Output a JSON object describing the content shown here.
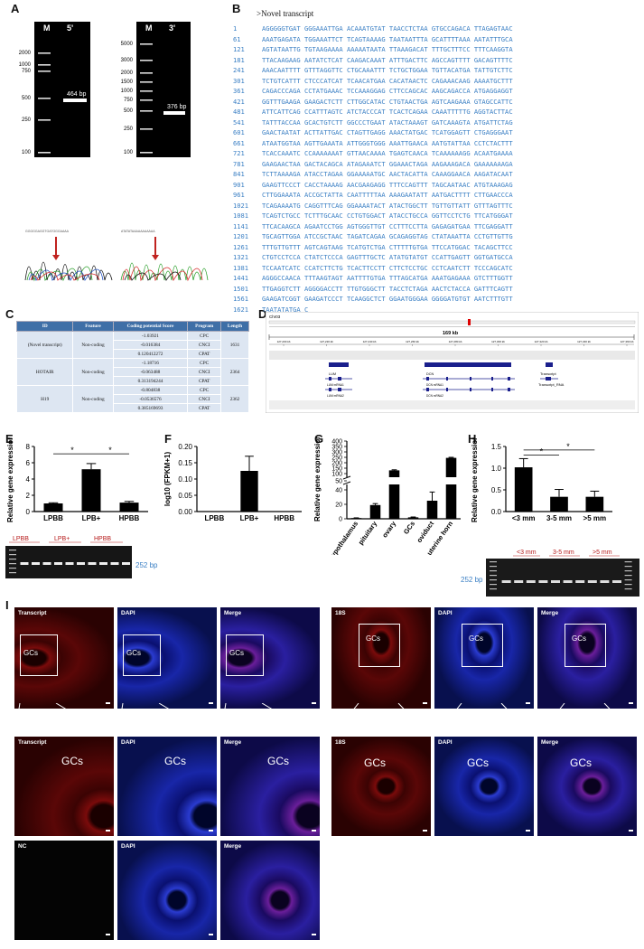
{
  "panels": {
    "A": "A",
    "B": "B",
    "C": "C",
    "D": "D",
    "E": "E",
    "F": "F",
    "G": "G",
    "H": "H",
    "I": "I"
  },
  "gel_a": {
    "left": {
      "marker": "M",
      "lane": "5'",
      "sizes": [
        "2000",
        "1000",
        "750",
        "500",
        "250",
        "100"
      ],
      "band": "464 bp"
    },
    "right": {
      "marker": "M",
      "lane": "3'",
      "sizes": [
        "5000",
        "3000",
        "2000",
        "1500",
        "1000",
        "750",
        "500",
        "250",
        "100"
      ],
      "band": "376 bp"
    }
  },
  "sequence_title": ">Novel transcript",
  "sequence": [
    {
      "n": "1",
      "s": "AGGGGGTGAT GGGAAATTGA ACAAATGTAT TAACCTCTAA GTGCCAGACA TTAGAGTAAC"
    },
    {
      "n": "61",
      "s": "AAATGAGATA TGGAAATTCT TCAGTAAAAG TAATAATTTA GCATTTTAAA AATATTTGCA"
    },
    {
      "n": "121",
      "s": "AGTATAATTG TGTAAGAAAA AAAAATAATA TTAAAGACAT TTTGCTTTCC TTTCAAGGTA"
    },
    {
      "n": "181",
      "s": "TTACAAGAAG AATATCTCAT CAAGACAAAT ATTTGACTTC AGCCAGTTTT GACAGTTTTC"
    },
    {
      "n": "241",
      "s": "AAACAATTTT GTTTAGGTTC CTGCAAATTT TCTGCTGGAA TGTTACATGA TATTGTCTTC"
    },
    {
      "n": "301",
      "s": "TCTGTCATTT CTCCCATCAT TCAACATGAA CACATAACTC CAGAAACAAG AAAATGCTTT"
    },
    {
      "n": "361",
      "s": "CAGACCCAGA CCTATGAAAC TCCAAAGGAG CTTCCAGCAC AAGCAGACCA ATGAGGAGGT"
    },
    {
      "n": "421",
      "s": "GGTTTGAAGA GAAGACTCTT CTTGGCATAC CTGTAACTGA AGTCAAGAAA GTAGCCATTC"
    },
    {
      "n": "481",
      "s": "ATTCATTCAG CCATTTAGTC ATCTACCCAT TCACTCAGAA CAAATTTTTG AGGTACTTAC"
    },
    {
      "n": "541",
      "s": "TATTTACCAA GCACTGTCTT GGCCCTGAAT ATACTAAAGT GATCAAAGTA ATGATTCTAG"
    },
    {
      "n": "601",
      "s": "GAACTAATAT ACTTATTGAC CTAGTTGAGG AAACTATGAC TCATGGAGTT CTGAGGGAAT"
    },
    {
      "n": "661",
      "s": "ATAATGGTAA AGTTGAAATA ATTGGGTGGG AAATTGAACA AATGTATTAA CCTCTACTTT"
    },
    {
      "n": "721",
      "s": "TCACCAAATC CCAAAAAAAT GTTAACAAAA TGAGTCAACA TCAAAAAAGG ACAATGAAAA"
    },
    {
      "n": "781",
      "s": "GAAGAACTAA GACTACAGCA ATAGAAATCT GGAAACTAGA AAGAAAGACA GAAAAAAAGA"
    },
    {
      "n": "841",
      "s": "TCTTAAAAGA ATACCTAGAA GGAAAAATGC AACTACATTA CAAAGGAACA AAGATACAAT"
    },
    {
      "n": "901",
      "s": "GAAGTTCCCT CACCTAAAAG AACGAAGAGG TTTCCAGTTT TAGCAATAAC ATGTAAAGAG"
    },
    {
      "n": "961",
      "s": "CTTGGAAATA ACCGCTATTA CAATTTTTAA AAAGAATATT AATGACTTTT CTTGAACCCA"
    },
    {
      "n": "1021",
      "s": "TCAGAAAATG CAGGTTTCAG GGAAAATACT ATACTGGCTT TGTTGTTATT GTTTAGTTTC"
    },
    {
      "n": "1081",
      "s": "TCAGTCTGCC TCTTTGCAAC CCTGTGGACT ATACCTGCCA GGTTCCTCTG TTCATGGGAT"
    },
    {
      "n": "1141",
      "s": "TTCACAAGCA AGAATCCTGG AGTGGGTTGT CCTTTCCTTA GAGAGATGAA TTCGAGGATT"
    },
    {
      "n": "1201",
      "s": "TGCAGTTGGA ATCCGCTAAC TAGATCAGAA GCAGAGGTAG CTATAAATTA CCTGTTGTTG"
    },
    {
      "n": "1261",
      "s": "TTTGTTGTTT AGTCAGTAAG TCATGTCTGA CTTTTTGTGA TTCCATGGAC TACAGCTTCC"
    },
    {
      "n": "1321",
      "s": "CTGTCCTCCA CTATCTCCCA GAGTTTGCTC ATATGTATGT CCATTGAGTT GGTGATGCCA"
    },
    {
      "n": "1381",
      "s": "TCCAATCATC CCATCTTCTG TCACTTCCTT CTTCTCCTGC CCTCAATCTT TCCCAGCATC"
    },
    {
      "n": "1441",
      "s": "AGGGCCAACA TTTAAGTAGT AATTTTGTGA TTTAGCATGA AAATGAGAAA GTCTTTGGTT"
    },
    {
      "n": "1501",
      "s": "TTGAGGTCTT AGGGGACCTT TTGTGGGCTT TACCTCTAGA AACTCTACCA GATTTCAGTT"
    },
    {
      "n": "1561",
      "s": "GAAGATCGGT GAAGATCCCT TCAAGGCTCT GGAATGGGAA GGGGATGTGT AATCTTTGTT"
    },
    {
      "n": "1621",
      "s": "TAATATATGA C"
    }
  ],
  "table_c": {
    "headers": [
      "ID",
      "Feature",
      "Coding potential Score",
      "Program",
      "Length"
    ],
    "groups": [
      {
        "id": "(Novel transcript)",
        "feature": "Non-coding",
        "length": "1631",
        "rows": [
          [
            "-1.03921",
            "CPC"
          ],
          [
            "-0.016384",
            "CNCI"
          ],
          [
            "0.120412272",
            "CPAT"
          ]
        ]
      },
      {
        "id": "HOTAIR",
        "feature": "Non-coding",
        "length": "2364",
        "rows": [
          [
            "-1.18716",
            "CPC"
          ],
          [
            "-0.063488",
            "CNCI"
          ],
          [
            "0.313194244",
            "CPAT"
          ]
        ]
      },
      {
        "id": "H19",
        "feature": "Non-coding",
        "length": "2362",
        "rows": [
          [
            "-0.804838",
            "CPC"
          ],
          [
            "-0.0536576",
            "CNCI"
          ],
          [
            "0.385169693",
            "CPAT"
          ]
        ]
      }
    ]
  },
  "genome_d": {
    "chrom": "Chr03",
    "span": "169 kb",
    "ticks": [
      "127,200 kb",
      "127,220 kb",
      "127,240 kb",
      "127,260 kb",
      "127,280 kb",
      "127,300 kb",
      "127,320 kb",
      "127,340 kb",
      "127,360 kb"
    ],
    "genes": [
      {
        "name": "LUM",
        "mrnas": [
          "LUM mRNA1",
          "LUM mRNA2"
        ]
      },
      {
        "name": "DCN",
        "mrnas": [
          "DCN mRNA1",
          "DCN mRNA2"
        ]
      }
    ],
    "transcript_labels": [
      "Transcript",
      "Transcript_RNA"
    ]
  },
  "chart_data": [
    {
      "panel": "E",
      "type": "bar",
      "categories": [
        "LPBB",
        "LPB+",
        "HPBB"
      ],
      "values": [
        1.0,
        5.2,
        1.1
      ],
      "errors": [
        0.08,
        0.7,
        0.15
      ],
      "ylabel": "Relative gene expression",
      "ylim": [
        0,
        8
      ],
      "yticks": [
        "0",
        "2",
        "4",
        "6",
        "8"
      ],
      "significance": "*",
      "gel_label": "252 bp"
    },
    {
      "panel": "F",
      "type": "bar",
      "categories": [
        "LPBB",
        "LPB+",
        "HPBB"
      ],
      "values": [
        0.0,
        0.125,
        0.0
      ],
      "errors": [
        0,
        0.045,
        0
      ],
      "ylabel": "log10 (FPKM+1)",
      "ylim": [
        0,
        0.2
      ],
      "yticks": [
        "0.00",
        "0.05",
        "0.10",
        "0.15",
        "0.20"
      ]
    },
    {
      "panel": "G",
      "type": "bar",
      "categories": [
        "hypothalamus",
        "pituitary",
        "ovary",
        "GCs",
        "oviduct",
        "uterine horn"
      ],
      "values": [
        1,
        19,
        130,
        2,
        25,
        245
      ],
      "errors": [
        0.3,
        2,
        5,
        0.5,
        12,
        5
      ],
      "ylabel": "Relative gene expression",
      "yticks": [
        "0",
        "20",
        "40",
        "50",
        "100",
        "150",
        "200",
        "250",
        "300",
        "350",
        "400"
      ]
    },
    {
      "panel": "H",
      "type": "bar",
      "categories": [
        "<3 mm",
        "3-5 mm",
        ">5 mm"
      ],
      "values": [
        1.02,
        0.34,
        0.34
      ],
      "errors": [
        0.2,
        0.17,
        0.13
      ],
      "ylabel": "Relative gene expression",
      "ylim": [
        0,
        1.5
      ],
      "yticks": [
        "0.0",
        "0.5",
        "1.0",
        "1.5"
      ],
      "significance": "*",
      "gel_label": "252 bp"
    }
  ],
  "lane_labels_e": [
    "LPBB",
    "LPB+",
    "HPBB"
  ],
  "lane_labels_h": [
    "<3 mm",
    "3-5 mm",
    ">5 mm"
  ],
  "micro_i": {
    "row1_left": [
      "Transcript",
      "DAPI",
      "Merge"
    ],
    "row1_right": [
      "18S",
      "DAPI",
      "Merge"
    ],
    "row2_left": [
      "Transcript",
      "DAPI",
      "Merge"
    ],
    "row2_right": [
      "18S",
      "DAPI",
      "Merge"
    ],
    "row3": [
      "NC",
      "DAPI",
      "Merge"
    ],
    "gcs": "GCs"
  }
}
